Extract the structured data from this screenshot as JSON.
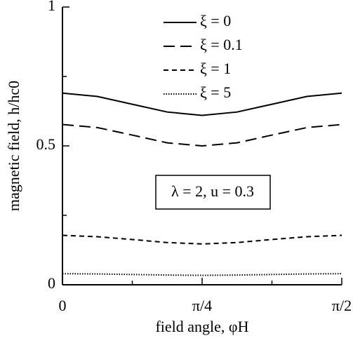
{
  "chart_data": {
    "type": "line",
    "xlabel": "field angle, φH",
    "ylabel": "magnetic field, h/hc0",
    "annotation": "λ = 2, u = 0.3",
    "x": [
      0,
      0.19635,
      0.3927,
      0.58905,
      0.7854,
      0.98175,
      1.1781,
      1.37445,
      1.5708
    ],
    "xlim": [
      0,
      1.5708
    ],
    "xticks": [
      0,
      {
        "value": 0.7854,
        "label": "π/4"
      },
      {
        "value": 1.5708,
        "label": "π/2"
      }
    ],
    "xminorticks": [
      0.3927,
      1.1781
    ],
    "ylim": [
      0,
      1
    ],
    "yticks": [
      0,
      0.5,
      1
    ],
    "yminorticks": [
      0.25,
      0.75
    ],
    "grid": false,
    "legend": "top",
    "series": [
      {
        "name": "ξ = 0",
        "color": "#000000",
        "dash": "none",
        "values": [
          0.69,
          0.678,
          0.65,
          0.622,
          0.61,
          0.622,
          0.65,
          0.678,
          0.69
        ]
      },
      {
        "name": "ξ = 0.1",
        "color": "#000000",
        "dash": "16 8",
        "values": [
          0.577,
          0.566,
          0.539,
          0.511,
          0.5,
          0.511,
          0.539,
          0.566,
          0.577
        ]
      },
      {
        "name": "ξ = 1",
        "color": "#000000",
        "dash": "7 5",
        "values": [
          0.178,
          0.173,
          0.163,
          0.152,
          0.147,
          0.152,
          0.163,
          0.173,
          0.178
        ]
      },
      {
        "name": "ξ = 5",
        "color": "#000000",
        "dash": "1.5 2",
        "values": [
          0.04,
          0.039,
          0.037,
          0.035,
          0.034,
          0.035,
          0.037,
          0.039,
          0.04
        ]
      }
    ]
  }
}
